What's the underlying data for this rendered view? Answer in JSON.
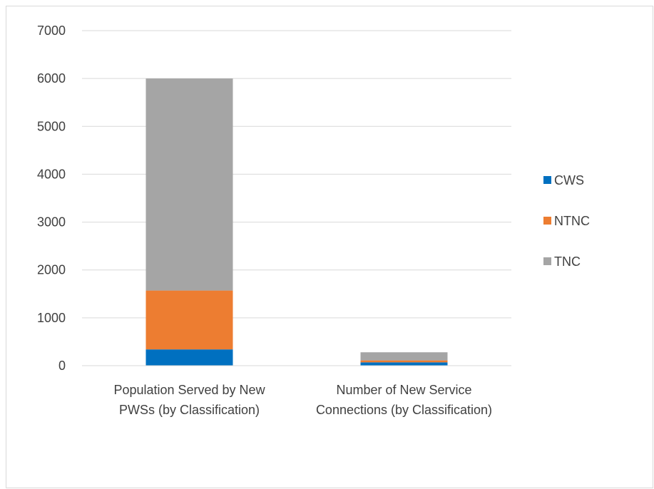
{
  "chart_data": {
    "type": "bar",
    "stacked": true,
    "categories": [
      [
        "Population Served by New",
        "PWSs (by Classification)"
      ],
      [
        "Number of New Service",
        "Connections (by Classification)"
      ]
    ],
    "series": [
      {
        "name": "CWS",
        "color": "#0070C0",
        "values": [
          340,
          70
        ]
      },
      {
        "name": "NTNC",
        "color": "#ED7D31",
        "values": [
          1230,
          40
        ]
      },
      {
        "name": "TNC",
        "color": "#A5A5A5",
        "values": [
          4430,
          170
        ]
      }
    ],
    "ylim": [
      0,
      7000
    ],
    "yticks": [
      0,
      1000,
      2000,
      3000,
      4000,
      5000,
      6000,
      7000
    ],
    "grid": true,
    "legend": "right",
    "title": "",
    "xlabel": "",
    "ylabel": ""
  }
}
